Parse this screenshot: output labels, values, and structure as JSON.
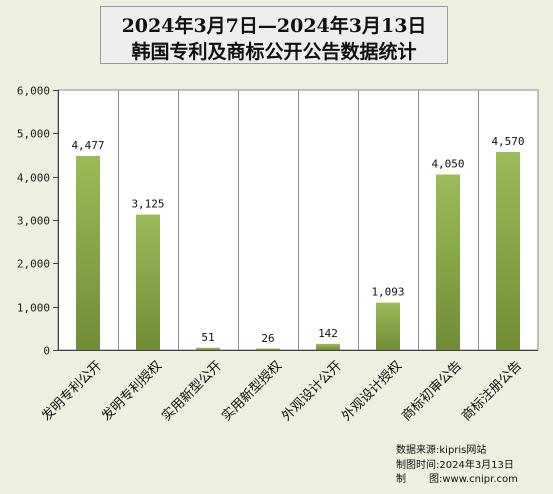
{
  "title_line1": "2024年3月7日—2024年3月13日",
  "title_line2": "韩国专利及商标公开公告数据统计",
  "footer": {
    "source_label": "数据来源:",
    "source_value": "kipris网站",
    "date_label": "制图时间:",
    "date_value": "2024年3月13日",
    "author_label_a": "制",
    "author_label_b": "图:",
    "author_value": "www.cnipr.com"
  },
  "colors": {
    "background": "#ebf1de",
    "bar_top": "#9bbb59",
    "bar_bottom": "#6f8d34",
    "grid": "#8c8c8c",
    "plot_bg": "#ffffff"
  },
  "chart_data": {
    "type": "bar",
    "categories": [
      "发明专利公开",
      "发明专利授权",
      "实用新型公开",
      "实用新型授权",
      "外观设计公开",
      "外观设计授权",
      "商标初审公告",
      "商标注册公告"
    ],
    "values": [
      4477,
      3125,
      51,
      26,
      142,
      1093,
      4050,
      4570
    ],
    "value_labels": [
      "4,477",
      "3,125",
      "51",
      "26",
      "142",
      "1,093",
      "4,050",
      "4,570"
    ],
    "ylim": [
      0,
      6000
    ],
    "yticks": [
      0,
      1000,
      2000,
      3000,
      4000,
      5000,
      6000
    ],
    "ytick_labels": [
      "0",
      "1,000",
      "2,000",
      "3,000",
      "4,000",
      "5,000",
      "6,000"
    ],
    "grid": "vertical",
    "legend": "none"
  }
}
